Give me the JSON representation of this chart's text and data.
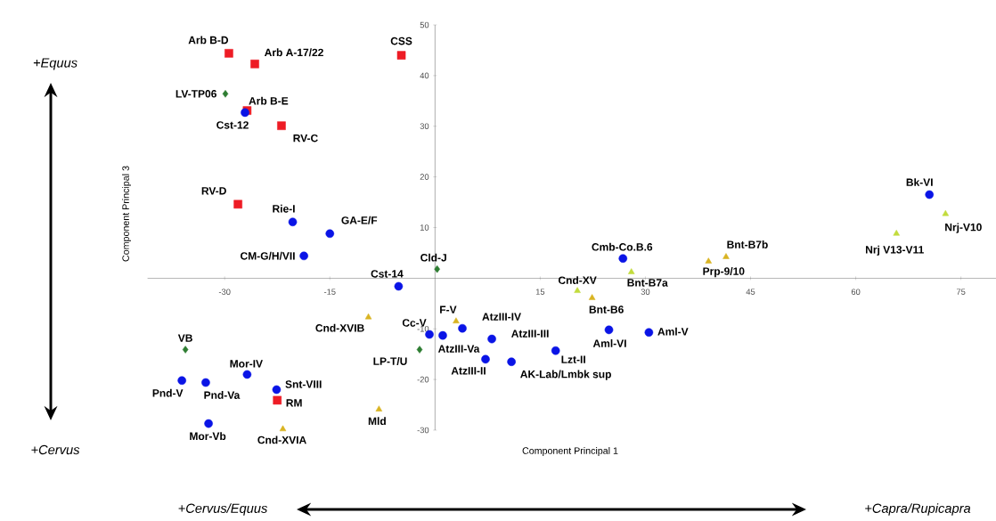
{
  "chart_data": {
    "type": "scatter",
    "xlabel": "Component Principal 1",
    "ylabel": "Component Principal 3",
    "xlim": [
      -41,
      80
    ],
    "ylim": [
      -30,
      50
    ],
    "xticks": [
      -30,
      -15,
      15,
      30,
      45,
      60,
      75
    ],
    "yticks": [
      -30,
      -20,
      -10,
      10,
      20,
      30,
      40,
      50
    ],
    "series": [
      {
        "color": "#ee1c25",
        "marker": "square",
        "x": [
          -29.4,
          -25.7,
          -4.8,
          -26.8,
          -21.9,
          -28.1,
          -22.5
        ],
        "values": [
          44.4,
          42.3,
          44.0,
          33.1,
          30.1,
          14.6,
          -24.1
        ]
      },
      {
        "color": "#0a14e6",
        "marker": "circle",
        "x": [
          -27.1,
          -20.3,
          -15.0,
          -18.7,
          -5.2,
          -0.8,
          1.1,
          3.9,
          8.1,
          7.2,
          10.9,
          17.2,
          24.8,
          30.5,
          26.8,
          70.5,
          -26.8,
          -22.6,
          -36.1,
          -32.7,
          -32.3
        ],
        "values": [
          32.7,
          11.1,
          8.8,
          4.4,
          -1.6,
          -11.1,
          -11.3,
          -9.9,
          -12.0,
          -16.0,
          -16.5,
          -14.3,
          -10.2,
          -10.7,
          3.9,
          16.5,
          -19.0,
          -22.0,
          -20.2,
          -20.6,
          -28.7
        ]
      },
      {
        "color": "#2e7d32",
        "marker": "diamond",
        "x": [
          -29.9,
          0.3,
          -2.2,
          -35.6
        ],
        "values": [
          36.4,
          1.8,
          -14.1,
          -14.1
        ]
      },
      {
        "color": "#d9b422",
        "marker": "triangle",
        "x": [
          -9.5,
          3.0,
          -8.0,
          -21.7,
          22.4,
          39.0,
          41.5
        ],
        "values": [
          -7.7,
          -8.5,
          -25.9,
          -29.8,
          -3.9,
          3.3,
          4.2
        ]
      },
      {
        "color": "#c2dc3c",
        "marker": "triangle",
        "x": [
          20.3,
          28.0,
          65.8,
          72.8
        ],
        "values": [
          -2.5,
          1.2,
          8.8,
          12.7
        ]
      }
    ],
    "annotations": [
      {
        "text": "Arb B-D",
        "x": -29.4,
        "y": 44.4
      },
      {
        "text": "Arb A-17/22",
        "x": -25.7,
        "y": 42.3
      },
      {
        "text": "CSS",
        "x": -4.8,
        "y": 44.0
      },
      {
        "text": "Arb B-E",
        "x": -26.8,
        "y": 33.1
      },
      {
        "text": "RV-C",
        "x": -21.9,
        "y": 30.1
      },
      {
        "text": "RV-D",
        "x": -28.1,
        "y": 14.6
      },
      {
        "text": "RM",
        "x": -22.5,
        "y": -24.1
      },
      {
        "text": "Cst-12",
        "x": -27.1,
        "y": 32.7
      },
      {
        "text": "Rie-I",
        "x": -20.3,
        "y": 11.1
      },
      {
        "text": "GA-E/F",
        "x": -15.0,
        "y": 8.8
      },
      {
        "text": "CM-G/H/VII",
        "x": -18.7,
        "y": 4.4
      },
      {
        "text": "Cst-14",
        "x": -5.2,
        "y": -1.6
      },
      {
        "text": "Cc-V",
        "x": -0.8,
        "y": -11.1
      },
      {
        "text": "AtzIII-Va",
        "x": 1.1,
        "y": -11.3
      },
      {
        "text": "AtzIII-IV",
        "x": 3.9,
        "y": -9.9
      },
      {
        "text": "AtzIII-III",
        "x": 8.1,
        "y": -12.0
      },
      {
        "text": "AtzIII-II",
        "x": 7.2,
        "y": -16.0
      },
      {
        "text": "AK-Lab/Lmbk sup",
        "x": 10.9,
        "y": -16.5
      },
      {
        "text": "Lzt-II",
        "x": 17.2,
        "y": -14.3
      },
      {
        "text": "Aml-VI",
        "x": 24.8,
        "y": -10.2
      },
      {
        "text": "Aml-V",
        "x": 30.5,
        "y": -10.7
      },
      {
        "text": "Cmb-Co.B.6",
        "x": 26.8,
        "y": 3.9
      },
      {
        "text": "Bk-VI",
        "x": 70.5,
        "y": 16.5
      },
      {
        "text": "Mor-IV",
        "x": -26.8,
        "y": -19.0
      },
      {
        "text": "Snt-VIII",
        "x": -22.6,
        "y": -22.0
      },
      {
        "text": "Pnd-V",
        "x": -36.1,
        "y": -20.2
      },
      {
        "text": "Pnd-Va",
        "x": -32.7,
        "y": -20.6
      },
      {
        "text": "Mor-Vb",
        "x": -32.3,
        "y": -28.7
      },
      {
        "text": "LV-TP06",
        "x": -29.9,
        "y": 36.4
      },
      {
        "text": "Cld-J",
        "x": 0.3,
        "y": 1.8
      },
      {
        "text": "LP-T/U",
        "x": -2.2,
        "y": -14.1
      },
      {
        "text": "VB",
        "x": -35.6,
        "y": -14.1
      },
      {
        "text": "Cnd-XVIB",
        "x": -9.5,
        "y": -7.7
      },
      {
        "text": "F-V",
        "x": 3.0,
        "y": -8.5
      },
      {
        "text": "Mld",
        "x": -8.0,
        "y": -25.9
      },
      {
        "text": "Cnd-XVIA",
        "x": -21.7,
        "y": -29.8
      },
      {
        "text": "Bnt-B6",
        "x": 22.4,
        "y": -3.9
      },
      {
        "text": "Prp-9/10",
        "x": 39.0,
        "y": 3.3
      },
      {
        "text": "Bnt-B7b",
        "x": 41.5,
        "y": 4.2
      },
      {
        "text": "Cnd-XV",
        "x": 20.3,
        "y": -2.5
      },
      {
        "text": "Bnt-B7a",
        "x": 28.0,
        "y": 1.2
      },
      {
        "text": "Nrj V13-V11",
        "x": 65.8,
        "y": 8.8
      },
      {
        "text": "Nrj-V10",
        "x": 72.8,
        "y": 12.7
      },
      "+Equus",
      "+Cervus",
      "+Cervus/Equus",
      "+Capra/Rupicapra"
    ]
  }
}
